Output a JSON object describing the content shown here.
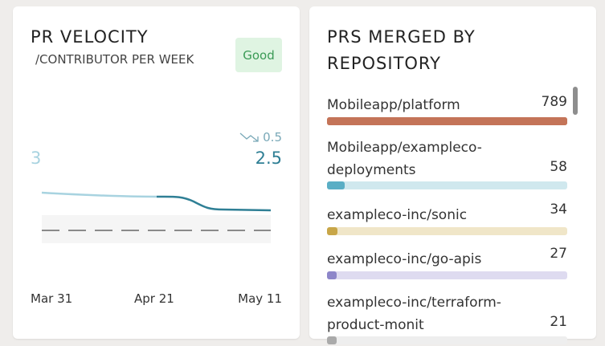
{
  "velocity": {
    "title": "PR VELOCITY",
    "subtitle": "/CONTRIBUTOR PER WEEK",
    "badge": "Good",
    "start_value": "3",
    "current_value": "2.5",
    "change": "0.5",
    "change_icon": "trend-down-icon",
    "x_labels": [
      "Mar 31",
      "Apr 21",
      "May 11"
    ],
    "colors": {
      "past": "#a8d3e0",
      "current": "#2f7f95",
      "badge_text": "#3a9a55",
      "badge_bg": "#dff4e2"
    }
  },
  "repos": {
    "title": "PRS MERGED BY REPOSITORY",
    "items": [
      {
        "name": "Mobileapp/platform",
        "value": "789",
        "count": 789,
        "color": "#c47458",
        "track": "#c47458"
      },
      {
        "name": "Mobileapp/exampleco-deployments",
        "value": "58",
        "count": 58,
        "color": "#5aaec5",
        "track": "#d0e8ee"
      },
      {
        "name": "exampleco-inc/sonic",
        "value": "34",
        "count": 34,
        "color": "#c8a648",
        "track": "#f0e6c8"
      },
      {
        "name": "exampleco-inc/go-apis",
        "value": "27",
        "count": 27,
        "color": "#8d86c9",
        "track": "#dedbf0"
      },
      {
        "name": "exampleco-inc/terraform-product-monit",
        "value": "21",
        "count": 21,
        "color": "#aaa",
        "track": "#eee"
      }
    ]
  }
}
